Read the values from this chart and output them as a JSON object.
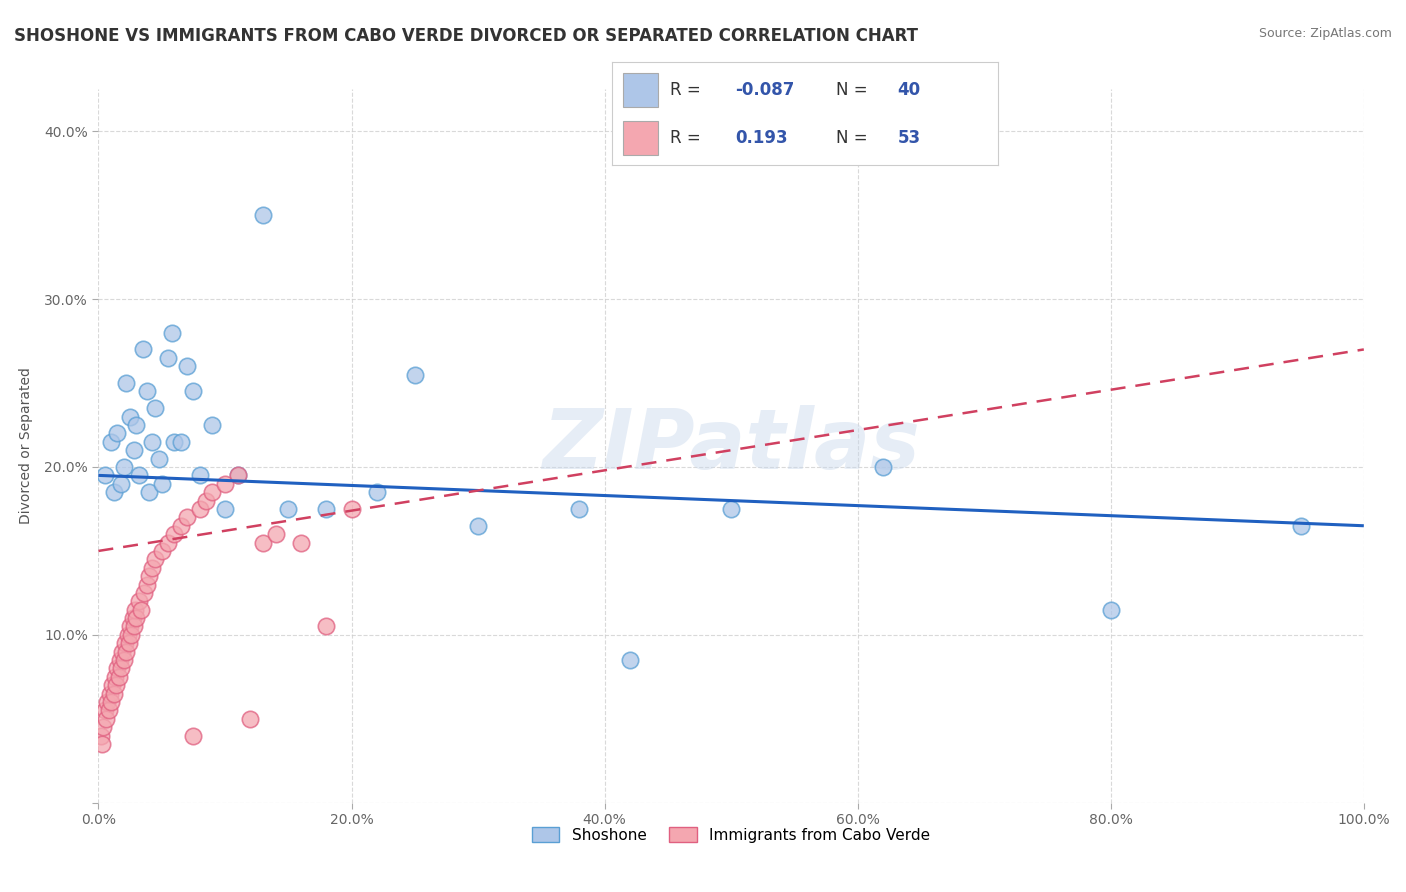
{
  "title": "SHOSHONE VS IMMIGRANTS FROM CABO VERDE DIVORCED OR SEPARATED CORRELATION CHART",
  "source": "Source: ZipAtlas.com",
  "ylabel": "Divorced or Separated",
  "xlim": [
    0,
    1.0
  ],
  "ylim": [
    0,
    0.425
  ],
  "xticks": [
    0.0,
    0.2,
    0.4,
    0.6,
    0.8,
    1.0
  ],
  "xtick_labels": [
    "0.0%",
    "20.0%",
    "40.0%",
    "60.0%",
    "80.0%",
    "100.0%"
  ],
  "yticks": [
    0.0,
    0.1,
    0.2,
    0.3,
    0.4
  ],
  "ytick_labels": [
    "",
    "10.0%",
    "20.0%",
    "30.0%",
    "40.0%"
  ],
  "legend_entries": [
    {
      "label": "Shoshone",
      "color": "#aec6e8",
      "R": "-0.087",
      "N": "40"
    },
    {
      "label": "Immigrants from Cabo Verde",
      "color": "#f4a7b0",
      "R": "0.193",
      "N": "53"
    }
  ],
  "shoshone_x": [
    0.005,
    0.01,
    0.012,
    0.015,
    0.018,
    0.02,
    0.022,
    0.025,
    0.028,
    0.03,
    0.032,
    0.035,
    0.038,
    0.04,
    0.042,
    0.045,
    0.048,
    0.05,
    0.055,
    0.058,
    0.06,
    0.065,
    0.07,
    0.075,
    0.08,
    0.09,
    0.1,
    0.11,
    0.13,
    0.15,
    0.18,
    0.22,
    0.25,
    0.3,
    0.38,
    0.42,
    0.5,
    0.62,
    0.8,
    0.95
  ],
  "shoshone_y": [
    0.195,
    0.215,
    0.185,
    0.22,
    0.19,
    0.2,
    0.25,
    0.23,
    0.21,
    0.225,
    0.195,
    0.27,
    0.245,
    0.185,
    0.215,
    0.235,
    0.205,
    0.19,
    0.265,
    0.28,
    0.215,
    0.215,
    0.26,
    0.245,
    0.195,
    0.225,
    0.175,
    0.195,
    0.35,
    0.175,
    0.175,
    0.185,
    0.255,
    0.165,
    0.175,
    0.085,
    0.175,
    0.2,
    0.115,
    0.165
  ],
  "cabo_verde_x": [
    0.002,
    0.003,
    0.004,
    0.005,
    0.006,
    0.007,
    0.008,
    0.009,
    0.01,
    0.011,
    0.012,
    0.013,
    0.014,
    0.015,
    0.016,
    0.017,
    0.018,
    0.019,
    0.02,
    0.021,
    0.022,
    0.023,
    0.024,
    0.025,
    0.026,
    0.027,
    0.028,
    0.029,
    0.03,
    0.032,
    0.034,
    0.036,
    0.038,
    0.04,
    0.042,
    0.045,
    0.05,
    0.055,
    0.06,
    0.065,
    0.07,
    0.075,
    0.08,
    0.085,
    0.09,
    0.1,
    0.11,
    0.12,
    0.13,
    0.14,
    0.16,
    0.18,
    0.2
  ],
  "cabo_verde_y": [
    0.04,
    0.035,
    0.045,
    0.055,
    0.05,
    0.06,
    0.055,
    0.065,
    0.06,
    0.07,
    0.065,
    0.075,
    0.07,
    0.08,
    0.075,
    0.085,
    0.08,
    0.09,
    0.085,
    0.095,
    0.09,
    0.1,
    0.095,
    0.105,
    0.1,
    0.11,
    0.105,
    0.115,
    0.11,
    0.12,
    0.115,
    0.125,
    0.13,
    0.135,
    0.14,
    0.145,
    0.15,
    0.155,
    0.16,
    0.165,
    0.17,
    0.04,
    0.175,
    0.18,
    0.185,
    0.19,
    0.195,
    0.05,
    0.155,
    0.16,
    0.155,
    0.105,
    0.175
  ],
  "background_color": "#ffffff",
  "grid_color": "#d0d0d0",
  "shoshone_marker_color": "#aec6e8",
  "shoshone_edge_color": "#5a9fd4",
  "cabo_verde_marker_color": "#f4a7b0",
  "cabo_verde_edge_color": "#e06080",
  "shoshone_line_color": "#2060c0",
  "cabo_verde_line_color": "#d04060",
  "watermark": "ZIPatlas",
  "title_fontsize": 12,
  "axis_label_fontsize": 10,
  "tick_fontsize": 10,
  "legend_text_color": "#3355aa"
}
